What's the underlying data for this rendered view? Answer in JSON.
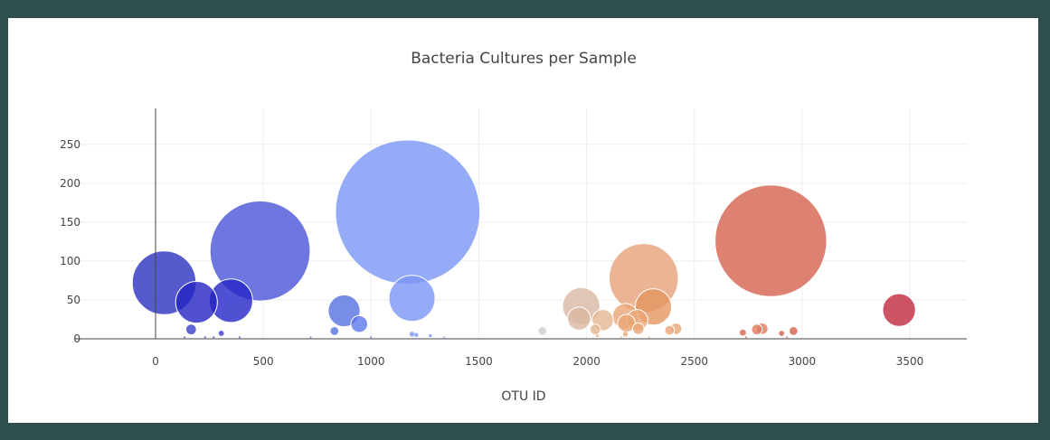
{
  "chart_data": {
    "type": "scatter",
    "title": "Bacteria Cultures per Sample",
    "xlabel": "OTU ID",
    "ylabel": "",
    "xlim": [
      -350,
      3750
    ],
    "ylim": [
      -5,
      300
    ],
    "xticks": [
      0,
      500,
      1000,
      1500,
      2000,
      2500,
      3000,
      3500
    ],
    "yticks": [
      0,
      50,
      100,
      150,
      200,
      250
    ],
    "grid": true,
    "colorscale": "Earth",
    "marker_size": "proportional to sample value",
    "points": [
      {
        "x": 40,
        "y": 72,
        "color": "#2a32c0"
      },
      {
        "x": 485,
        "y": 113,
        "color": "#4a55d8"
      },
      {
        "x": 1170,
        "y": 163,
        "color": "#7b96f5"
      },
      {
        "x": 2855,
        "y": 126,
        "color": "#d4624f"
      },
      {
        "x": 2265,
        "y": 78,
        "color": "#e5a17a"
      },
      {
        "x": 350,
        "y": 49,
        "color": "#2424c8"
      },
      {
        "x": 190,
        "y": 47,
        "color": "#2424c2"
      },
      {
        "x": 1190,
        "y": 52,
        "color": "#7b96f5"
      },
      {
        "x": 875,
        "y": 36,
        "color": "#5670e0"
      },
      {
        "x": 3450,
        "y": 37,
        "color": "#c2283e"
      },
      {
        "x": 1975,
        "y": 42,
        "color": "#d9b7a3"
      },
      {
        "x": 2310,
        "y": 41,
        "color": "#e4965f"
      },
      {
        "x": 1965,
        "y": 26,
        "color": "#d9b7a3"
      },
      {
        "x": 2075,
        "y": 24,
        "color": "#e5b591"
      },
      {
        "x": 2180,
        "y": 29,
        "color": "#e8a676"
      },
      {
        "x": 2185,
        "y": 20,
        "color": "#e8a676"
      },
      {
        "x": 2235,
        "y": 24,
        "color": "#e8a676"
      },
      {
        "x": 945,
        "y": 19,
        "color": "#5b78ec"
      },
      {
        "x": 2240,
        "y": 13,
        "color": "#e8a676"
      },
      {
        "x": 2415,
        "y": 13,
        "color": "#e8a676"
      },
      {
        "x": 2385,
        "y": 11,
        "color": "#e8a676"
      },
      {
        "x": 2815,
        "y": 13,
        "color": "#dc7a5e"
      },
      {
        "x": 2790,
        "y": 12,
        "color": "#dc7a5e"
      },
      {
        "x": 2960,
        "y": 10,
        "color": "#d4624f"
      },
      {
        "x": 2040,
        "y": 12,
        "color": "#e5b591"
      },
      {
        "x": 1795,
        "y": 10,
        "color": "#cfcfcf"
      },
      {
        "x": 165,
        "y": 12,
        "color": "#3a3fcc"
      },
      {
        "x": 830,
        "y": 10,
        "color": "#5670e0"
      },
      {
        "x": 2725,
        "y": 8,
        "color": "#d4624f"
      },
      {
        "x": 2905,
        "y": 7,
        "color": "#d4624f"
      },
      {
        "x": 305,
        "y": 7,
        "color": "#3a3fcc"
      },
      {
        "x": 1190,
        "y": 6,
        "color": "#7b96f5"
      },
      {
        "x": 1210,
        "y": 5,
        "color": "#7b96f5"
      },
      {
        "x": 2180,
        "y": 6,
        "color": "#e8a676"
      },
      {
        "x": 1275,
        "y": 4,
        "color": "#7b96f5"
      },
      {
        "x": 2050,
        "y": 4,
        "color": "#e5b591"
      },
      {
        "x": 1340,
        "y": 2,
        "color": "#7b96f5"
      },
      {
        "x": 135,
        "y": 2,
        "color": "#3a3fcc"
      },
      {
        "x": 230,
        "y": 2,
        "color": "#3a3fcc"
      },
      {
        "x": 270,
        "y": 2,
        "color": "#3a3fcc"
      },
      {
        "x": 390,
        "y": 2,
        "color": "#3a3fcc"
      },
      {
        "x": 720,
        "y": 2,
        "color": "#5670e0"
      },
      {
        "x": 1000,
        "y": 2,
        "color": "#5b78ec"
      },
      {
        "x": 2160,
        "y": 2,
        "color": "#e8a676"
      },
      {
        "x": 2290,
        "y": 2,
        "color": "#e8a676"
      },
      {
        "x": 2740,
        "y": 2,
        "color": "#d4624f"
      },
      {
        "x": 2930,
        "y": 2,
        "color": "#d4624f"
      }
    ]
  }
}
